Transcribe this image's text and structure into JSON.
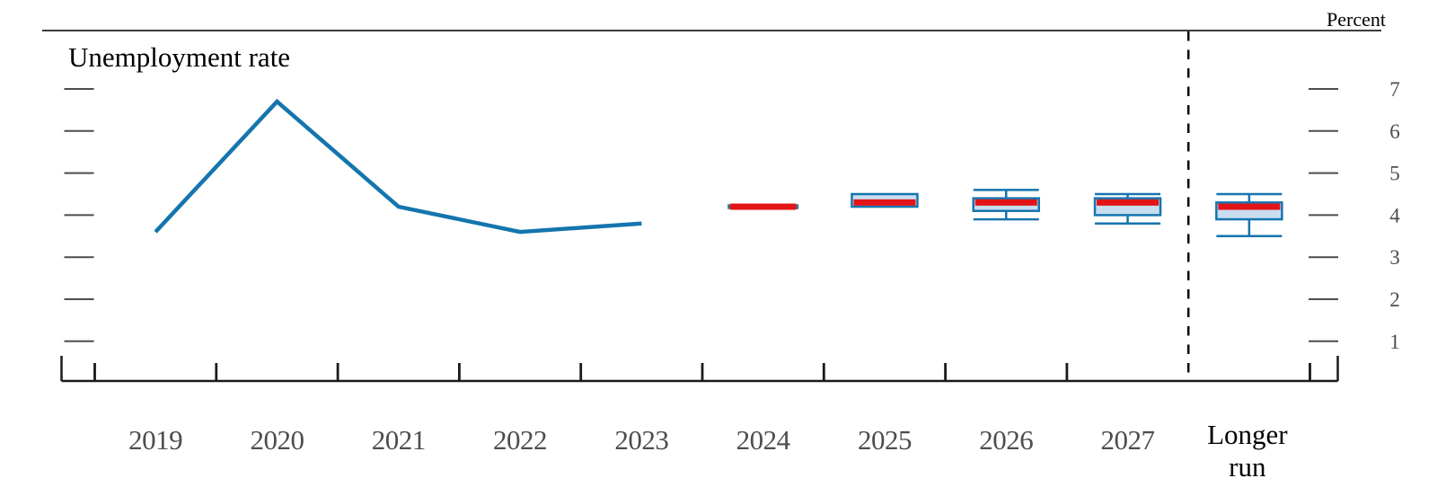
{
  "header": {
    "title": "Unemployment rate",
    "unit_label": "Percent"
  },
  "colors": {
    "line_blue": "#1575ae",
    "box_border_blue": "#1575ae",
    "box_fill_light_blue": "#c8ddf0",
    "median_red": "#e21418",
    "collapsed_range_cap": "#4a6a80",
    "axis_black": "#1a1a1a",
    "rule_gray": "#3d3d3d",
    "tick_gray": "#4d4d4d",
    "label_gray": "#4d4d4d",
    "label_black": "#000000",
    "separator_black": "#000000"
  },
  "chart_data": {
    "type": "line",
    "subtype": "line_with_projection_boxplots",
    "title": "Unemployment rate",
    "ylabel": "Percent",
    "xlabel": "",
    "grid": false,
    "legend_position": "none",
    "ylim": [
      0.6,
      7.6
    ],
    "y_ticks": [
      7,
      6,
      5,
      4,
      3,
      2,
      1
    ],
    "y_tick_labels": [
      "7",
      "6",
      "5",
      "4",
      "3",
      "2",
      "1"
    ],
    "x_categories": [
      "2019",
      "2020",
      "2021",
      "2022",
      "2023",
      "2024",
      "2025",
      "2026",
      "2027",
      "Longer run"
    ],
    "historical": {
      "years": [
        "2019",
        "2020",
        "2021",
        "2022",
        "2023"
      ],
      "values": [
        3.6,
        6.7,
        4.2,
        3.6,
        3.8
      ]
    },
    "projections": [
      {
        "label": "2024",
        "median": 4.2,
        "central_tendency": [
          4.2,
          4.2
        ],
        "range": [
          4.2,
          4.2
        ]
      },
      {
        "label": "2025",
        "median": 4.3,
        "central_tendency": [
          4.2,
          4.5
        ],
        "range": [
          4.2,
          4.5
        ]
      },
      {
        "label": "2026",
        "median": 4.3,
        "central_tendency": [
          4.1,
          4.4
        ],
        "range": [
          3.9,
          4.6
        ]
      },
      {
        "label": "2027",
        "median": 4.3,
        "central_tendency": [
          4.0,
          4.4
        ],
        "range": [
          3.8,
          4.5
        ]
      },
      {
        "label": "Longer run",
        "median": 4.2,
        "central_tendency": [
          3.9,
          4.3
        ],
        "range": [
          3.5,
          4.5
        ]
      }
    ],
    "longer_run_label_lines": [
      "Longer",
      "run"
    ],
    "separator": "dashed vertical line between 2027 and Longer run"
  }
}
